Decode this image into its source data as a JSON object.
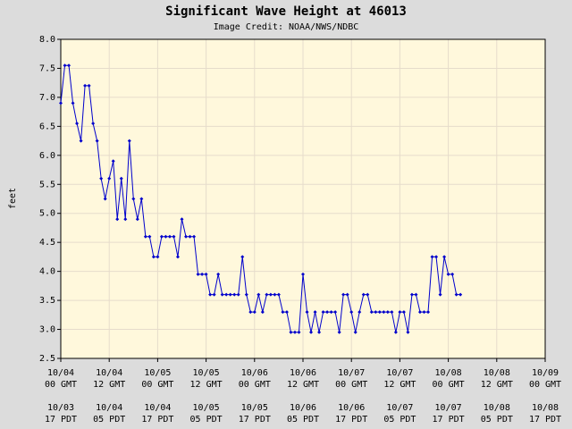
{
  "chart_data": {
    "type": "line",
    "title": "Significant Wave Height at 46013",
    "subtitle": "Image Credit: NOAA/NWS/NDBC",
    "ylabel": "feet",
    "x": [
      0,
      1,
      2,
      3,
      4,
      5,
      6,
      7,
      8,
      9,
      10,
      11,
      12,
      13,
      14,
      15,
      16,
      17,
      18,
      19,
      20,
      21,
      22,
      23,
      24,
      25,
      26,
      27,
      28,
      29,
      30,
      31,
      32,
      33,
      34,
      35,
      36,
      37,
      38,
      39,
      40,
      41,
      42,
      43,
      44,
      45,
      46,
      47,
      48,
      49,
      50,
      51,
      52,
      53,
      54,
      55,
      56,
      57,
      58,
      59,
      60,
      61,
      62,
      63,
      64,
      65,
      66,
      67,
      68,
      69,
      70,
      71,
      72,
      73,
      74,
      75,
      76,
      77,
      78,
      79,
      80,
      81,
      82,
      83,
      84,
      85,
      86,
      87,
      88,
      89,
      90,
      91,
      92,
      93,
      94,
      95,
      96,
      97,
      98,
      99
    ],
    "series": [
      {
        "name": "Significant Wave Height",
        "color": "#0000cc",
        "values": [
          6.9,
          7.55,
          7.55,
          6.9,
          6.55,
          6.25,
          7.2,
          7.2,
          6.55,
          6.25,
          5.6,
          5.25,
          5.6,
          5.9,
          4.9,
          5.6,
          4.9,
          6.25,
          5.25,
          4.9,
          5.25,
          4.6,
          4.6,
          4.25,
          4.25,
          4.6,
          4.6,
          4.6,
          4.6,
          4.25,
          4.9,
          4.6,
          4.6,
          4.6,
          3.95,
          3.95,
          3.95,
          3.6,
          3.6,
          3.95,
          3.6,
          3.6,
          3.6,
          3.6,
          3.6,
          4.25,
          3.6,
          3.3,
          3.3,
          3.6,
          3.3,
          3.6,
          3.6,
          3.6,
          3.6,
          3.3,
          3.3,
          2.95,
          2.95,
          2.95,
          3.95,
          3.3,
          2.95,
          3.3,
          2.95,
          3.3,
          3.3,
          3.3,
          3.3,
          2.95,
          3.6,
          3.6,
          3.3,
          2.95,
          3.3,
          3.6,
          3.6,
          3.3,
          3.3,
          3.3,
          3.3,
          3.3,
          3.3,
          2.95,
          3.3,
          3.3,
          2.95,
          3.6,
          3.6,
          3.3,
          3.3,
          3.3,
          4.25,
          4.25,
          3.6,
          4.25,
          3.95,
          3.95,
          3.6,
          3.6
        ]
      }
    ],
    "xlim": [
      0,
      120
    ],
    "xticks": [
      {
        "value": 0,
        "label": "10/04",
        "time": "00 GMT",
        "pdt_date": "10/03",
        "pdt_time": "17 PDT"
      },
      {
        "value": 12,
        "label": "10/04",
        "time": "12 GMT",
        "pdt_date": "10/04",
        "pdt_time": "05 PDT"
      },
      {
        "value": 24,
        "label": "10/05",
        "time": "00 GMT",
        "pdt_date": "10/04",
        "pdt_time": "17 PDT"
      },
      {
        "value": 36,
        "label": "10/05",
        "time": "12 GMT",
        "pdt_date": "10/05",
        "pdt_time": "05 PDT"
      },
      {
        "value": 48,
        "label": "10/06",
        "time": "00 GMT",
        "pdt_date": "10/05",
        "pdt_time": "17 PDT"
      },
      {
        "value": 60,
        "label": "10/06",
        "time": "12 GMT",
        "pdt_date": "10/06",
        "pdt_time": "05 PDT"
      },
      {
        "value": 72,
        "label": "10/07",
        "time": "00 GMT",
        "pdt_date": "10/06",
        "pdt_time": "17 PDT"
      },
      {
        "value": 84,
        "label": "10/07",
        "time": "12 GMT",
        "pdt_date": "10/07",
        "pdt_time": "05 PDT"
      },
      {
        "value": 96,
        "label": "10/08",
        "time": "00 GMT",
        "pdt_date": "10/07",
        "pdt_time": "17 PDT"
      },
      {
        "value": 108,
        "label": "10/08",
        "time": "12 GMT",
        "pdt_date": "10/08",
        "pdt_time": "05 PDT"
      },
      {
        "value": 120,
        "label": "10/09",
        "time": "00 GMT",
        "pdt_date": "10/08",
        "pdt_time": "17 PDT"
      }
    ],
    "ylim": [
      2.5,
      8.0
    ],
    "yticks": [
      2.5,
      {
        "value": 3.0,
        "label": "3.0"
      },
      3.5,
      {
        "value": 4.0,
        "label": "4.0"
      },
      4.5,
      {
        "value": 5.0,
        "label": "5.0"
      },
      5.5,
      {
        "value": 6.0,
        "label": "6.0"
      },
      6.5,
      {
        "value": 7.0,
        "label": "7.0"
      },
      7.5,
      {
        "value": 8.0,
        "label": "8.0"
      }
    ],
    "grid": true
  }
}
